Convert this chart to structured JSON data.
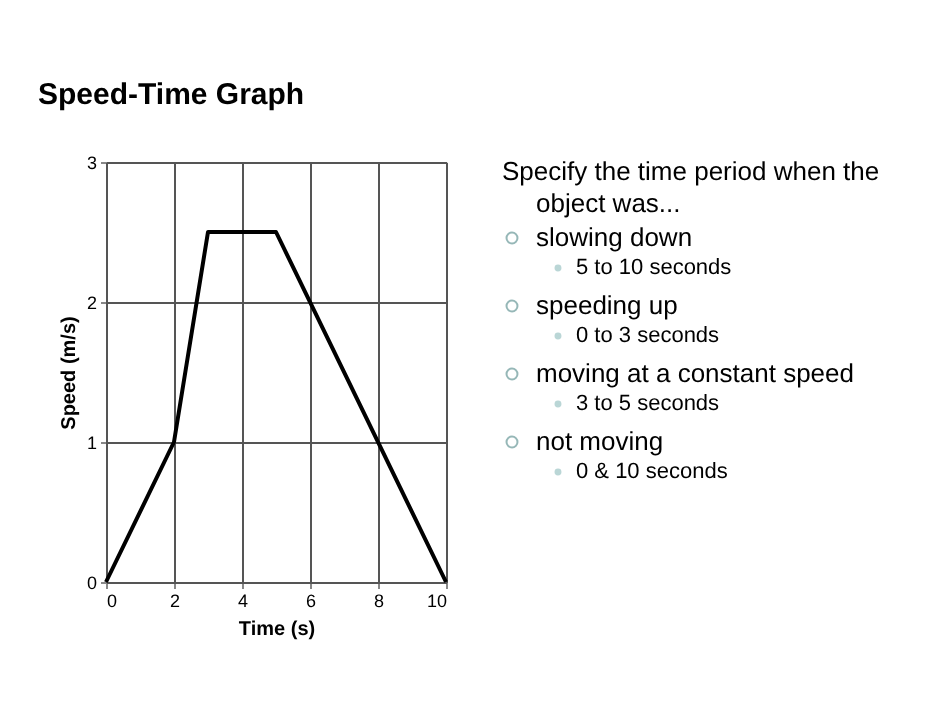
{
  "chart_data": {
    "type": "line",
    "title": "Speed-Time Graph",
    "xlabel": "Time (s)",
    "ylabel": "Speed (m/s)",
    "x": [
      0,
      2,
      3,
      5,
      10
    ],
    "series": [
      {
        "color": "#000000",
        "values": [
          0,
          1,
          2.5,
          2.5,
          0
        ]
      }
    ],
    "xlim": [
      0,
      10
    ],
    "xticks": [
      0,
      2,
      4,
      6,
      8,
      10
    ],
    "ylim": [
      0,
      3
    ],
    "yticks": [
      0,
      1,
      2,
      3
    ],
    "grid": true,
    "annotations": [
      "Specify the time period when the object was...",
      "slowing down",
      "5 to 10 seconds",
      "speeding up",
      "0 to 3 seconds",
      "moving at a constant speed",
      "3 to 5 seconds",
      "not moving",
      "0 & 10 seconds"
    ]
  }
}
